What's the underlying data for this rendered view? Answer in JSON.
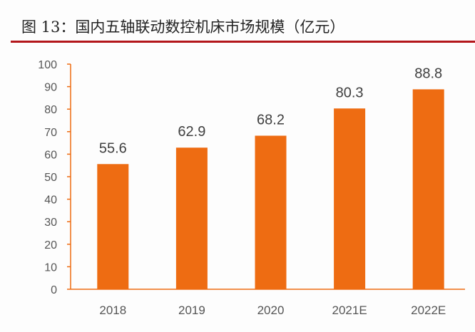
{
  "chart_data": {
    "type": "bar",
    "title": "图 13：国内五轴联动数控机床市场规模（亿元）",
    "categories": [
      "2018",
      "2019",
      "2020",
      "2021E",
      "2022E"
    ],
    "values": [
      55.6,
      62.9,
      68.2,
      80.3,
      88.8
    ],
    "value_labels": [
      "55.6",
      "62.9",
      "68.2",
      "80.3",
      "88.8"
    ],
    "yticks": [
      "0",
      "10",
      "20",
      "30",
      "40",
      "50",
      "60",
      "70",
      "80",
      "90",
      "100"
    ],
    "ylim": [
      0,
      100
    ],
    "xlabel": "",
    "ylabel": "",
    "grid": false,
    "bar_color": "#ee6c12",
    "axis_color": "#ee6c12",
    "title_rule_color": "#b3161b"
  }
}
